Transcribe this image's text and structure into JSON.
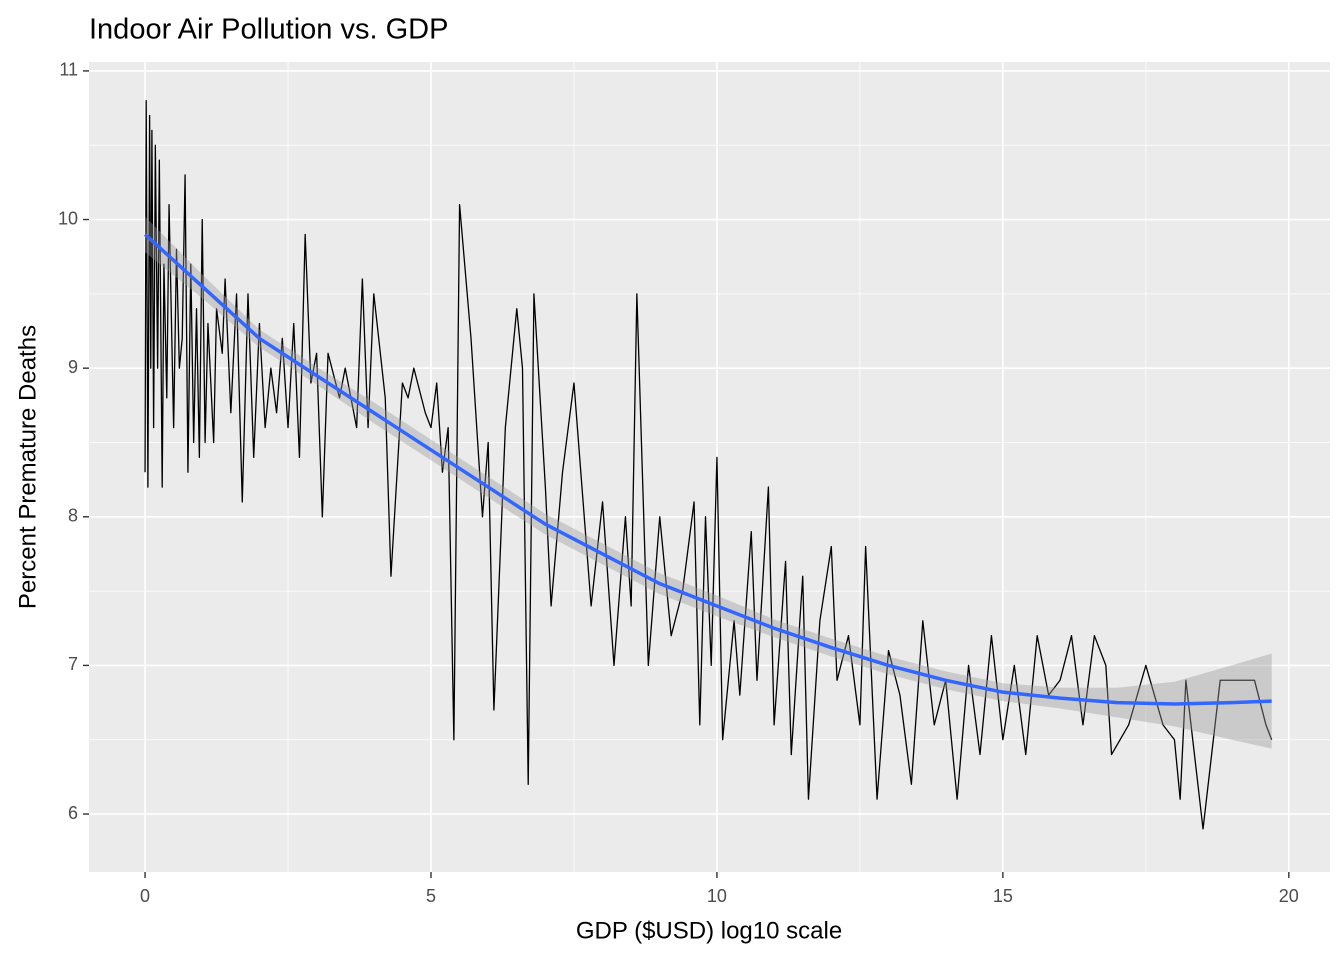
{
  "chart_data": {
    "type": "line",
    "title": "Indoor Air Pollution vs. GDP",
    "x_label": "GDP ($USD) log10 scale",
    "y_label": "Percent Premature Deaths",
    "xlim": [
      -0.98,
      20.72
    ],
    "ylim": [
      5.61,
      11.06
    ],
    "xticks": [
      0,
      5,
      10,
      15,
      20
    ],
    "yticks": [
      6,
      7,
      8,
      9,
      10,
      11
    ],
    "x_minor_ticks": [
      2.5,
      7.5,
      12.5,
      17.5
    ],
    "y_minor_ticks": [
      6.5,
      7.5,
      8.5,
      9.5,
      10.5
    ],
    "grid": true,
    "series": [
      {
        "kind": "line",
        "color": "#000000",
        "x": [
          0,
          0.02,
          0.05,
          0.08,
          0.1,
          0.12,
          0.15,
          0.18,
          0.22,
          0.25,
          0.3,
          0.33,
          0.38,
          0.42,
          0.5,
          0.55,
          0.6,
          0.65,
          0.7,
          0.75,
          0.8,
          0.85,
          0.9,
          0.95,
          1.0,
          1.05,
          1.1,
          1.2,
          1.25,
          1.35,
          1.4,
          1.5,
          1.6,
          1.7,
          1.8,
          1.9,
          2.0,
          2.1,
          2.2,
          2.3,
          2.4,
          2.5,
          2.6,
          2.7,
          2.8,
          2.9,
          3.0,
          3.1,
          3.2,
          3.4,
          3.5,
          3.7,
          3.8,
          3.9,
          4.0,
          4.2,
          4.3,
          4.5,
          4.6,
          4.7,
          4.9,
          5.0,
          5.1,
          5.2,
          5.3,
          5.4,
          5.5,
          5.7,
          5.9,
          6.0,
          6.1,
          6.3,
          6.5,
          6.6,
          6.7,
          6.8,
          7.0,
          7.1,
          7.3,
          7.5,
          7.8,
          8.0,
          8.2,
          8.4,
          8.5,
          8.6,
          8.8,
          9.0,
          9.2,
          9.4,
          9.6,
          9.7,
          9.8,
          9.9,
          10.0,
          10.1,
          10.3,
          10.4,
          10.6,
          10.7,
          10.9,
          11.0,
          11.2,
          11.3,
          11.5,
          11.6,
          11.8,
          12.0,
          12.1,
          12.3,
          12.5,
          12.6,
          12.8,
          13.0,
          13.2,
          13.4,
          13.6,
          13.8,
          14.0,
          14.2,
          14.4,
          14.6,
          14.8,
          15.0,
          15.2,
          15.4,
          15.6,
          15.8,
          16.0,
          16.2,
          16.4,
          16.6,
          16.8,
          16.9,
          17.2,
          17.5,
          17.8,
          18.0,
          18.1,
          18.2,
          18.5,
          18.8,
          19.4,
          19.6,
          19.7
        ],
        "values": [
          8.3,
          10.8,
          8.2,
          10.7,
          9.0,
          10.6,
          8.6,
          10.5,
          9.0,
          10.4,
          8.2,
          9.7,
          8.8,
          10.1,
          8.6,
          9.8,
          9.0,
          9.2,
          10.3,
          8.3,
          9.7,
          8.5,
          9.4,
          8.4,
          10.0,
          8.5,
          9.3,
          8.5,
          9.4,
          9.1,
          9.6,
          8.7,
          9.5,
          8.1,
          9.5,
          8.4,
          9.3,
          8.6,
          9.0,
          8.7,
          9.2,
          8.6,
          9.3,
          8.4,
          9.9,
          8.9,
          9.1,
          8.0,
          9.1,
          8.8,
          9.0,
          8.6,
          9.6,
          8.6,
          9.5,
          8.8,
          7.6,
          8.9,
          8.8,
          9.0,
          8.7,
          8.6,
          8.9,
          8.3,
          8.6,
          6.5,
          10.1,
          9.2,
          8.0,
          8.5,
          6.7,
          8.6,
          9.4,
          9.0,
          6.2,
          9.5,
          8.2,
          7.4,
          8.3,
          8.9,
          7.4,
          8.1,
          7.0,
          8.0,
          7.4,
          9.5,
          7.0,
          8.0,
          7.2,
          7.5,
          8.1,
          6.6,
          8.0,
          7.0,
          8.4,
          6.5,
          7.3,
          6.8,
          7.9,
          6.9,
          8.2,
          6.6,
          7.7,
          6.4,
          7.6,
          6.1,
          7.3,
          7.8,
          6.9,
          7.2,
          6.6,
          7.8,
          6.1,
          7.1,
          6.8,
          6.2,
          7.3,
          6.6,
          6.9,
          6.1,
          7.0,
          6.4,
          7.2,
          6.5,
          7.0,
          6.4,
          7.2,
          6.8,
          6.9,
          7.2,
          6.6,
          7.2,
          7.0,
          6.4,
          6.6,
          7.0,
          6.6,
          6.5,
          6.1,
          6.9,
          5.9,
          6.9,
          6.9,
          6.6,
          6.5
        ]
      },
      {
        "kind": "smooth",
        "color": "#3366ff",
        "band_color": "#999999",
        "x": [
          0,
          1,
          2,
          3,
          4,
          5,
          6,
          7,
          8,
          9,
          10,
          11,
          12,
          13,
          14,
          15,
          16,
          17,
          18,
          19,
          19.7
        ],
        "values": [
          9.9,
          9.55,
          9.2,
          8.95,
          8.7,
          8.45,
          8.2,
          7.95,
          7.75,
          7.55,
          7.4,
          7.25,
          7.12,
          7.0,
          6.9,
          6.82,
          6.78,
          6.75,
          6.74,
          6.75,
          6.76
        ],
        "lower": [
          9.78,
          9.47,
          9.14,
          8.89,
          8.63,
          8.38,
          8.13,
          7.88,
          7.68,
          7.48,
          7.33,
          7.19,
          7.06,
          6.94,
          6.84,
          6.76,
          6.71,
          6.65,
          6.59,
          6.5,
          6.44
        ],
        "upper": [
          10.02,
          9.63,
          9.26,
          9.01,
          8.77,
          8.52,
          8.27,
          8.02,
          7.82,
          7.62,
          7.47,
          7.31,
          7.18,
          7.06,
          6.96,
          6.88,
          6.85,
          6.85,
          6.89,
          7.0,
          7.08
        ]
      }
    ]
  }
}
